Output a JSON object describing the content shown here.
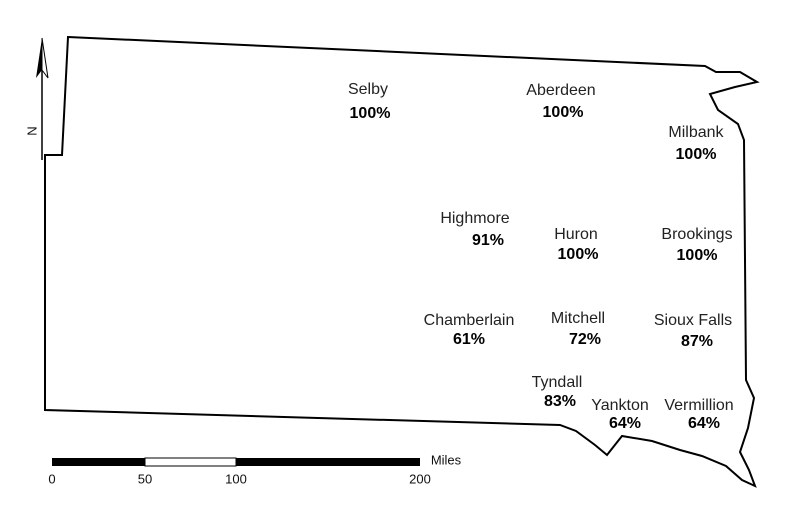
{
  "north_label": "N",
  "cities": [
    {
      "name": "Selby",
      "value": "100%"
    },
    {
      "name": "Aberdeen",
      "value": "100%"
    },
    {
      "name": "Milbank",
      "value": "100%"
    },
    {
      "name": "Highmore",
      "value": "91%"
    },
    {
      "name": "Huron",
      "value": "100%"
    },
    {
      "name": "Brookings",
      "value": "100%"
    },
    {
      "name": "Chamberlain",
      "value": "61%"
    },
    {
      "name": "Mitchell",
      "value": "72%"
    },
    {
      "name": "Sioux Falls",
      "value": "87%"
    },
    {
      "name": "Tyndall",
      "value": "83%"
    },
    {
      "name": "Yankton",
      "value": "64%"
    },
    {
      "name": "Vermillion",
      "value": "64%"
    }
  ],
  "scale_bar": {
    "unit": "Miles",
    "ticks": [
      0,
      50,
      100,
      200
    ]
  }
}
